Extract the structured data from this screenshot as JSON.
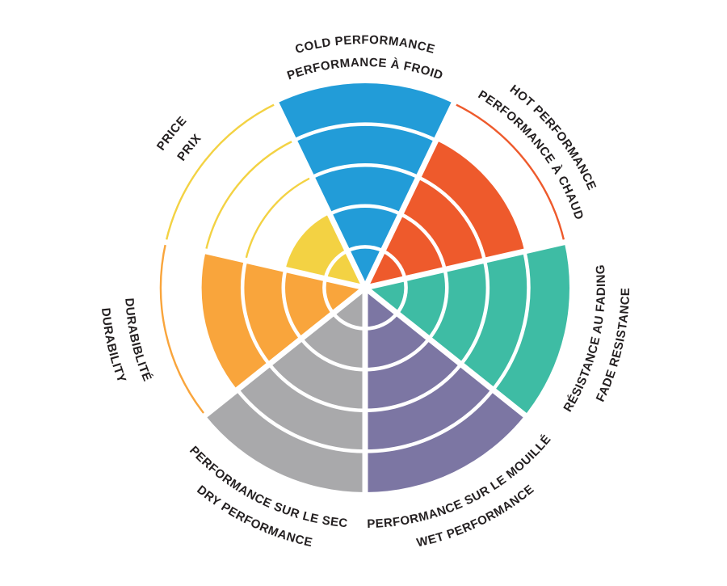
{
  "page": {
    "background": "#ffffff",
    "label_color": "#231F20"
  },
  "chart_data": {
    "type": "radial-rating-wheel",
    "description": "Seven-sector polar wheel; each sector filled from center to its rating ring; unfilled ring boundaries drawn as thin colored arcs; white arcs divide filled rings",
    "rings_total": 5,
    "direction": "clockwise",
    "start_angle_deg": 270,
    "grid": "white ring dividers inside filled wedges",
    "legend_position": "curved labels around wheel, English outer line / French inner line",
    "categories": [
      "COLD PERFORMANCE",
      "HOT PERFORMANCE",
      "FADE RESISTANCE",
      "WET PERFORMANCE",
      "DRY PERFORMANCE",
      "DURABILITY",
      "PRICE"
    ],
    "values": [
      5,
      4,
      5,
      5,
      5,
      4,
      2
    ],
    "sectors": [
      {
        "id": "cold-performance",
        "label_en": "COLD PERFORMANCE",
        "label_fr": "PERFORMANCE À FROID",
        "value": 5,
        "max": 5,
        "color": "#229CD8"
      },
      {
        "id": "hot-performance",
        "label_en": "HOT PERFORMANCE",
        "label_fr": "PERFORMANCE À CHAUD",
        "value": 4,
        "max": 5,
        "color": "#EE5A2C"
      },
      {
        "id": "fade-resistance",
        "label_en": "FADE RESISTANCE",
        "label_fr": "RÉSISTANCE AU FADING",
        "value": 5,
        "max": 5,
        "color": "#3EBCA4"
      },
      {
        "id": "wet-performance",
        "label_en": "WET PERFORMANCE",
        "label_fr": "PERFORMANCE SUR LE MOUILLÉ",
        "value": 5,
        "max": 5,
        "color": "#7C76A3"
      },
      {
        "id": "dry-performance",
        "label_en": "DRY PERFORMANCE",
        "label_fr": "PERFORMANCE SUR LE SEC",
        "value": 5,
        "max": 5,
        "color": "#A9A9AB"
      },
      {
        "id": "durability",
        "label_en": "DURABILITY",
        "label_fr": "DURABIBLITÉ",
        "value": 4,
        "max": 5,
        "color": "#F9A53C"
      },
      {
        "id": "price",
        "label_en": "PRICE",
        "label_fr": "PRIX",
        "value": 2,
        "max": 5,
        "color": "#F3D243"
      }
    ]
  }
}
